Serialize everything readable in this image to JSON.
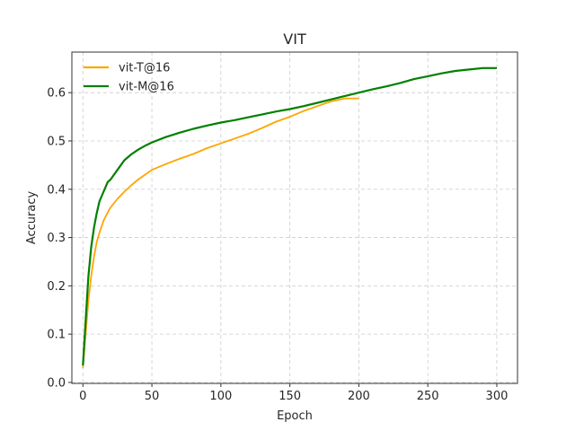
{
  "chart_data": {
    "type": "line",
    "title": "VIT",
    "xlabel": "Epoch",
    "ylabel": "Accuracy",
    "xlim": [
      -8,
      315
    ],
    "ylim": [
      -0.002,
      0.684
    ],
    "xticks": [
      0,
      50,
      100,
      150,
      200,
      250,
      300
    ],
    "yticks": [
      0.0,
      0.1,
      0.2,
      0.3,
      0.4,
      0.5,
      0.6
    ],
    "grid": true,
    "legend_position": "top-left",
    "series": [
      {
        "name": "vit-T@16",
        "color": "#ffa500",
        "x": [
          0,
          2,
          4,
          6,
          8,
          10,
          12,
          15,
          18,
          20,
          25,
          30,
          35,
          40,
          45,
          50,
          60,
          70,
          80,
          90,
          100,
          110,
          120,
          130,
          140,
          150,
          160,
          170,
          180,
          190,
          200
        ],
        "y": [
          0.03,
          0.1,
          0.17,
          0.22,
          0.26,
          0.29,
          0.31,
          0.335,
          0.352,
          0.362,
          0.38,
          0.395,
          0.408,
          0.42,
          0.43,
          0.44,
          0.452,
          0.463,
          0.473,
          0.485,
          0.495,
          0.505,
          0.515,
          0.527,
          0.54,
          0.55,
          0.562,
          0.572,
          0.582,
          0.588,
          0.588
        ]
      },
      {
        "name": "vit-M@16",
        "color": "#008000",
        "x": [
          0,
          2,
          4,
          6,
          8,
          10,
          12,
          15,
          18,
          20,
          25,
          30,
          35,
          40,
          45,
          50,
          60,
          70,
          80,
          90,
          100,
          110,
          120,
          130,
          140,
          150,
          160,
          170,
          180,
          190,
          200,
          210,
          220,
          230,
          240,
          250,
          260,
          270,
          280,
          290,
          300
        ],
        "y": [
          0.035,
          0.13,
          0.22,
          0.28,
          0.32,
          0.35,
          0.375,
          0.395,
          0.415,
          0.42,
          0.44,
          0.46,
          0.472,
          0.482,
          0.49,
          0.497,
          0.508,
          0.517,
          0.525,
          0.532,
          0.538,
          0.543,
          0.549,
          0.555,
          0.561,
          0.566,
          0.572,
          0.579,
          0.586,
          0.593,
          0.6,
          0.607,
          0.613,
          0.62,
          0.628,
          0.634,
          0.64,
          0.645,
          0.648,
          0.651,
          0.651
        ]
      }
    ]
  }
}
